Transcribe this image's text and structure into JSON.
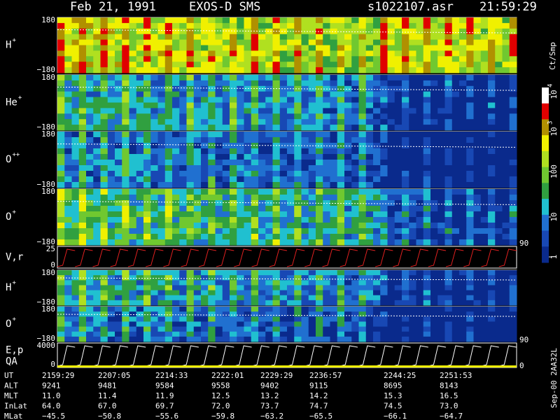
{
  "header": {
    "date": "Feb 21, 1991",
    "instrument": "EXOS-D SMS",
    "file": "s1022107.asr",
    "time": "21:59:29"
  },
  "panels": [
    {
      "label": "H",
      "sup": "+",
      "top": "180",
      "bottom": "−180"
    },
    {
      "label": "He",
      "sup": "+",
      "top": "180",
      "bottom": "−180"
    },
    {
      "label": "O",
      "sup": "++",
      "top": "180",
      "bottom": "−180"
    },
    {
      "label": "O",
      "sup": "+",
      "top": "180",
      "bottom": "−180",
      "right": "90"
    },
    {
      "label": "V,r",
      "top": "25",
      "bottom": "0"
    },
    {
      "label": "H",
      "sup": "+",
      "top": "180",
      "bottom": "−180"
    },
    {
      "label": "O",
      "sup": "+",
      "top": "180",
      "bottom": "−180",
      "right": "90"
    },
    {
      "label": "E,p",
      "label2": "QA",
      "top": "4000",
      "bottom": "0",
      "right": "0"
    }
  ],
  "colorbar": {
    "unit": "Ct/Smp",
    "ticks": [
      {
        "base": "10",
        "exp": "4"
      },
      {
        "base": "10",
        "exp": "3"
      },
      {
        "base": "100"
      },
      {
        "base": "10"
      },
      {
        "base": "1"
      }
    ]
  },
  "footer": "Sep-00 2AA32L",
  "table": {
    "rows": [
      {
        "label": "UT",
        "values": [
          "2159:29",
          "2207:05",
          "2214:33",
          "2222:01",
          "2229:29",
          "2236:57",
          "2244:25",
          "2251:53"
        ]
      },
      {
        "label": "ALT",
        "values": [
          "9241",
          "9481",
          "9584",
          "9558",
          "9402",
          "9115",
          "8695",
          "8143"
        ]
      },
      {
        "label": "MLT",
        "values": [
          "11.0",
          "11.4",
          "11.9",
          "12.5",
          "13.2",
          "14.2",
          "15.3",
          "16.5"
        ]
      },
      {
        "label": "InLat",
        "values": [
          "64.0",
          "67.0",
          "69.7",
          "72.0",
          "73.7",
          "74.7",
          "74.5",
          "73.0"
        ]
      },
      {
        "label": "MLat",
        "values": [
          "−45.5",
          "−50.8",
          "−55.6",
          "−59.8",
          "−63.2",
          "−65.5",
          "−66.1",
          "−64.7"
        ]
      }
    ]
  }
}
